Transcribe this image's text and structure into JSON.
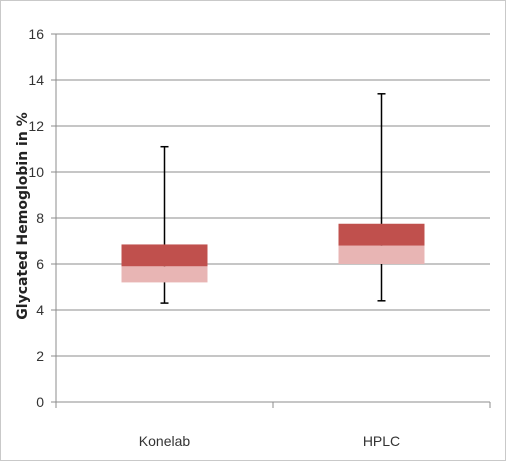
{
  "chart_data": {
    "type": "box",
    "ylabel": "Glycated Hemoglobin in %",
    "xlabel": "",
    "ylim": [
      0,
      16
    ],
    "yticks": [
      "0",
      "2",
      "4",
      "6",
      "8",
      "10",
      "12",
      "14",
      "16"
    ],
    "grid": true,
    "categories": [
      "Konelab",
      "HPLC"
    ],
    "boxes": [
      {
        "category": "Konelab",
        "min": 4.3,
        "q1": 5.2,
        "median": 5.9,
        "q3": 6.85,
        "max": 11.1
      },
      {
        "category": "HPLC",
        "min": 4.4,
        "q1": 6.0,
        "median": 6.8,
        "q3": 7.75,
        "max": 13.4
      }
    ],
    "colors": {
      "lower_box": "#e8b5b4",
      "upper_box": "#c0504d",
      "whisker": "#000000",
      "grid": "#8c8c8c",
      "axis": "#8c8c8c"
    }
  }
}
